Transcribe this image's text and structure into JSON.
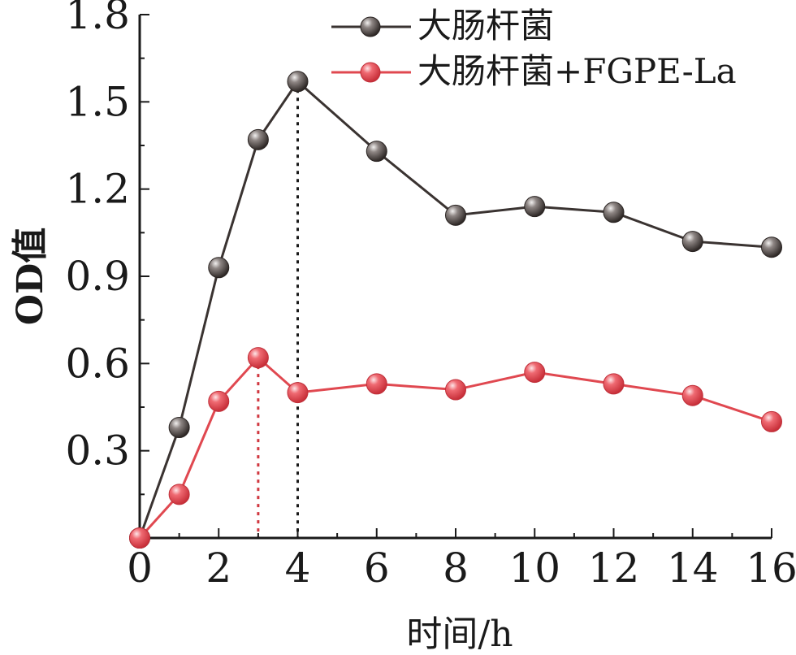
{
  "chart_data": {
    "type": "line",
    "xlabel": "时间/h",
    "ylabel": "OD值",
    "xlim": [
      0,
      16
    ],
    "ylim": [
      0,
      1.8
    ],
    "x_ticks": [
      "0",
      "2",
      "4",
      "6",
      "8",
      "10",
      "12",
      "14",
      "16"
    ],
    "y_ticks": [
      "0.3",
      "0.6",
      "0.9",
      "1.2",
      "1.5",
      "1.8"
    ],
    "x_tick_values": [
      0,
      2,
      4,
      6,
      8,
      10,
      12,
      14,
      16
    ],
    "y_tick_values": [
      0.3,
      0.6,
      0.9,
      1.2,
      1.5,
      1.8
    ],
    "legend_position": "top-right",
    "grid": false,
    "series": [
      {
        "name": "大肠杆菌",
        "color": "#3a3331",
        "marker_color": "#5a5250",
        "x": [
          0,
          1,
          2,
          3,
          4,
          6,
          8,
          10,
          12,
          14,
          16
        ],
        "y": [
          0.0,
          0.38,
          0.93,
          1.37,
          1.57,
          1.33,
          1.11,
          1.14,
          1.12,
          1.02,
          1.0
        ]
      },
      {
        "name": "大肠杆菌+FGPE-La",
        "color": "#e04850",
        "marker_color": "#e8505a",
        "x": [
          0,
          1,
          2,
          3,
          4,
          6,
          8,
          10,
          12,
          14,
          16
        ],
        "y": [
          0.0,
          0.15,
          0.47,
          0.62,
          0.5,
          0.53,
          0.51,
          0.57,
          0.53,
          0.49,
          0.4
        ]
      }
    ],
    "annotations": [
      {
        "type": "vertical-dotted-line",
        "x": 4,
        "y": 1.57,
        "color": "#1a1a1a"
      },
      {
        "type": "vertical-dotted-line",
        "x": 3,
        "y": 0.62,
        "color": "#d03840"
      }
    ]
  }
}
